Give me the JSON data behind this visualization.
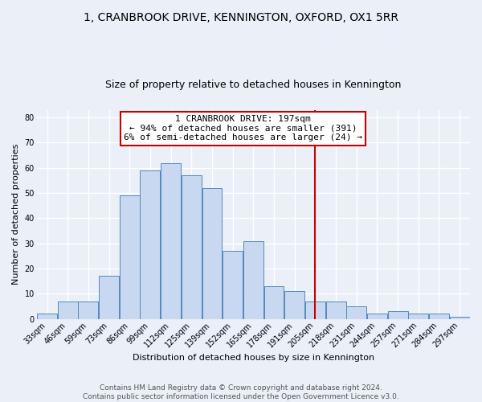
{
  "title": "1, CRANBROOK DRIVE, KENNINGTON, OXFORD, OX1 5RR",
  "subtitle": "Size of property relative to detached houses in Kennington",
  "xlabel": "Distribution of detached houses by size in Kennington",
  "ylabel": "Number of detached properties",
  "bin_labels": [
    "33sqm",
    "46sqm",
    "59sqm",
    "73sqm",
    "86sqm",
    "99sqm",
    "112sqm",
    "125sqm",
    "139sqm",
    "152sqm",
    "165sqm",
    "178sqm",
    "191sqm",
    "205sqm",
    "218sqm",
    "231sqm",
    "244sqm",
    "257sqm",
    "271sqm",
    "284sqm",
    "297sqm"
  ],
  "bar_heights": [
    2,
    7,
    7,
    17,
    49,
    59,
    62,
    57,
    52,
    27,
    31,
    13,
    11,
    7,
    7,
    5,
    2,
    3,
    2,
    2,
    1
  ],
  "bar_color": "#c8d8f0",
  "bar_edge_color": "#5588bb",
  "vline_x_index": 13.0,
  "vline_color": "#cc0000",
  "annotation_line1": "1 CRANBROOK DRIVE: 197sqm",
  "annotation_line2": "← 94% of detached houses are smaller (391)",
  "annotation_line3": "6% of semi-detached houses are larger (24) →",
  "annotation_box_color": "#ffffff",
  "annotation_box_edge_color": "#cc0000",
  "ylim": [
    0,
    83
  ],
  "yticks": [
    0,
    10,
    20,
    30,
    40,
    50,
    60,
    70,
    80
  ],
  "footer_line1": "Contains HM Land Registry data © Crown copyright and database right 2024.",
  "footer_line2": "Contains public sector information licensed under the Open Government Licence v3.0.",
  "background_color": "#eaeff8",
  "plot_background_color": "#eaeff8",
  "title_fontsize": 10,
  "subtitle_fontsize": 9,
  "axis_label_fontsize": 8,
  "tick_fontsize": 7,
  "annotation_fontsize": 8,
  "footer_fontsize": 6.5,
  "grid_color": "#ffffff",
  "grid_lw": 1.0
}
